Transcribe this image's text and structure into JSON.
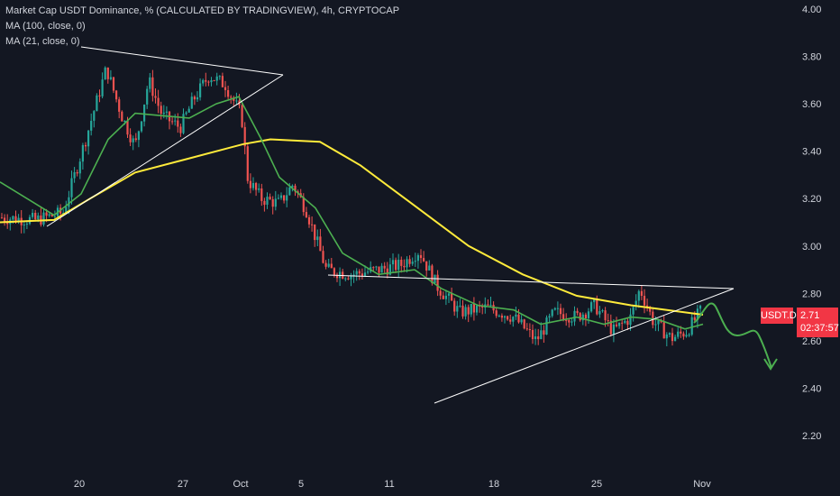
{
  "legend": {
    "title": "Market Cap USDT Dominance, % (CALCULATED BY TRADINGVIEW), 4h, CRYPTOCAP",
    "ma100": "MA (100, close, 0)",
    "ma21": "MA (21, close, 0)"
  },
  "symbol_tag": "USDT.D",
  "current_price": "2.71",
  "countdown": "02:37:57",
  "colors": {
    "background": "#131722",
    "up": "#26a69a",
    "down": "#ef5350",
    "ma100": "#ffeb3b",
    "ma21": "#4caf50",
    "trendline": "#ffffff",
    "projection": "#4caf50",
    "price_tag": "#f23645"
  },
  "chart_data": {
    "type": "candlestick",
    "title": "Market Cap USDT Dominance, % (CALCULATED BY TRADINGVIEW), 4h, CRYPTOCAP",
    "y_ticks": [
      "4.00",
      "3.80",
      "3.60",
      "3.40",
      "3.20",
      "3.00",
      "2.80",
      "2.60",
      "2.40",
      "2.20"
    ],
    "x_ticks": [
      "20",
      "27",
      "Oct",
      "5",
      "11",
      "18",
      "25",
      "Nov"
    ],
    "ylim": [
      2.1,
      4.0
    ],
    "price_path": [
      {
        "x": 0,
        "y": 3.12
      },
      {
        "x": 40,
        "y": 3.11
      },
      {
        "x": 70,
        "y": 3.14
      },
      {
        "x": 95,
        "y": 3.45
      },
      {
        "x": 118,
        "y": 3.75
      },
      {
        "x": 135,
        "y": 3.55
      },
      {
        "x": 150,
        "y": 3.42
      },
      {
        "x": 165,
        "y": 3.7
      },
      {
        "x": 180,
        "y": 3.55
      },
      {
        "x": 200,
        "y": 3.5
      },
      {
        "x": 215,
        "y": 3.62
      },
      {
        "x": 232,
        "y": 3.72
      },
      {
        "x": 250,
        "y": 3.68
      },
      {
        "x": 268,
        "y": 3.55
      },
      {
        "x": 275,
        "y": 3.28
      },
      {
        "x": 290,
        "y": 3.2
      },
      {
        "x": 310,
        "y": 3.18
      },
      {
        "x": 325,
        "y": 3.26
      },
      {
        "x": 340,
        "y": 3.15
      },
      {
        "x": 362,
        "y": 2.9
      },
      {
        "x": 390,
        "y": 2.88
      },
      {
        "x": 420,
        "y": 2.9
      },
      {
        "x": 445,
        "y": 2.92
      },
      {
        "x": 465,
        "y": 2.98
      },
      {
        "x": 485,
        "y": 2.83
      },
      {
        "x": 510,
        "y": 2.72
      },
      {
        "x": 540,
        "y": 2.74
      },
      {
        "x": 570,
        "y": 2.7
      },
      {
        "x": 595,
        "y": 2.6
      },
      {
        "x": 615,
        "y": 2.72
      },
      {
        "x": 640,
        "y": 2.7
      },
      {
        "x": 660,
        "y": 2.75
      },
      {
        "x": 680,
        "y": 2.64
      },
      {
        "x": 700,
        "y": 2.7
      },
      {
        "x": 710,
        "y": 2.82
      },
      {
        "x": 725,
        "y": 2.68
      },
      {
        "x": 745,
        "y": 2.61
      },
      {
        "x": 762,
        "y": 2.64
      },
      {
        "x": 780,
        "y": 2.74
      }
    ],
    "ma100_path": [
      {
        "x": 0,
        "y": 3.1
      },
      {
        "x": 60,
        "y": 3.11
      },
      {
        "x": 100,
        "y": 3.2
      },
      {
        "x": 150,
        "y": 3.31
      },
      {
        "x": 210,
        "y": 3.37
      },
      {
        "x": 270,
        "y": 3.43
      },
      {
        "x": 300,
        "y": 3.45
      },
      {
        "x": 355,
        "y": 3.44
      },
      {
        "x": 400,
        "y": 3.34
      },
      {
        "x": 460,
        "y": 3.17
      },
      {
        "x": 520,
        "y": 3.0
      },
      {
        "x": 580,
        "y": 2.88
      },
      {
        "x": 640,
        "y": 2.79
      },
      {
        "x": 700,
        "y": 2.75
      },
      {
        "x": 740,
        "y": 2.73
      },
      {
        "x": 780,
        "y": 2.71
      }
    ],
    "ma21_path": [
      {
        "x": 0,
        "y": 3.27
      },
      {
        "x": 30,
        "y": 3.2
      },
      {
        "x": 60,
        "y": 3.13
      },
      {
        "x": 90,
        "y": 3.22
      },
      {
        "x": 120,
        "y": 3.45
      },
      {
        "x": 150,
        "y": 3.56
      },
      {
        "x": 180,
        "y": 3.55
      },
      {
        "x": 210,
        "y": 3.54
      },
      {
        "x": 240,
        "y": 3.6
      },
      {
        "x": 265,
        "y": 3.63
      },
      {
        "x": 290,
        "y": 3.45
      },
      {
        "x": 310,
        "y": 3.29
      },
      {
        "x": 350,
        "y": 3.16
      },
      {
        "x": 380,
        "y": 2.97
      },
      {
        "x": 420,
        "y": 2.88
      },
      {
        "x": 460,
        "y": 2.9
      },
      {
        "x": 490,
        "y": 2.82
      },
      {
        "x": 530,
        "y": 2.75
      },
      {
        "x": 570,
        "y": 2.73
      },
      {
        "x": 600,
        "y": 2.67
      },
      {
        "x": 640,
        "y": 2.7
      },
      {
        "x": 670,
        "y": 2.67
      },
      {
        "x": 700,
        "y": 2.7
      },
      {
        "x": 730,
        "y": 2.69
      },
      {
        "x": 760,
        "y": 2.65
      },
      {
        "x": 780,
        "y": 2.67
      }
    ]
  }
}
